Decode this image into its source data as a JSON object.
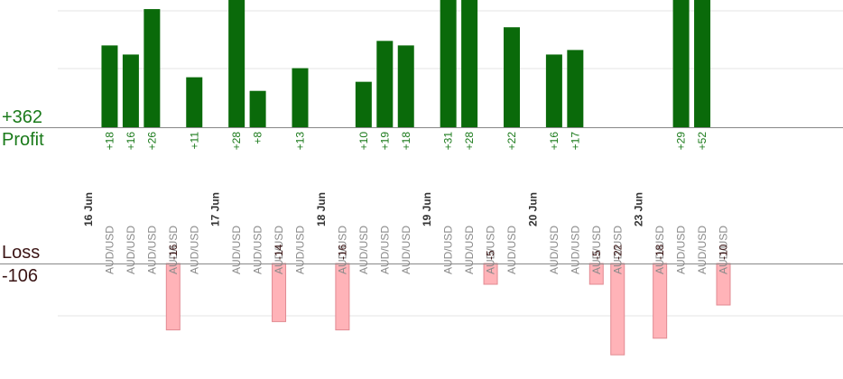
{
  "labels": {
    "profit_total": "+362",
    "profit_title": "Profit",
    "loss_title": "Loss",
    "loss_total": "-106"
  },
  "colors": {
    "profit_bar": "#0a6a0a",
    "profit_text": "#1a7a1a",
    "loss_bar": "#ffb3b8",
    "loss_bar_edge": "#e28a92",
    "loss_text": "#3a1414",
    "axis": "#888888",
    "grid": "#e6e6e6",
    "date_text": "#333333",
    "pair_text": "#8a8a8a"
  },
  "chart_data": {
    "type": "bar",
    "grid": true,
    "profit": {
      "total": "+362",
      "title": "Profit",
      "ylim": [
        0,
        28
      ]
    },
    "loss": {
      "total": "-106",
      "title": "Loss",
      "ylim": [
        0,
        25
      ]
    },
    "slots": [
      {
        "kind": "date",
        "label": "16 Jun"
      },
      {
        "kind": "trade",
        "pair": "AUD/USD",
        "value": 18,
        "label": "+18"
      },
      {
        "kind": "trade",
        "pair": "AUD/USD",
        "value": 16,
        "label": "+16"
      },
      {
        "kind": "trade",
        "pair": "AUD/USD",
        "value": 26,
        "label": "+26"
      },
      {
        "kind": "trade",
        "pair": "AUD/USD",
        "value": -16,
        "label": "-16"
      },
      {
        "kind": "trade",
        "pair": "AUD/USD",
        "value": 11,
        "label": "+11"
      },
      {
        "kind": "date",
        "label": "17 Jun"
      },
      {
        "kind": "trade",
        "pair": "AUD/USD",
        "value": 28,
        "label": "+28"
      },
      {
        "kind": "trade",
        "pair": "AUD/USD",
        "value": 8,
        "label": "+8"
      },
      {
        "kind": "trade",
        "pair": "AUD/USD",
        "value": -14,
        "label": "-14"
      },
      {
        "kind": "trade",
        "pair": "AUD/USD",
        "value": 13,
        "label": "+13"
      },
      {
        "kind": "date",
        "label": "18 Jun"
      },
      {
        "kind": "trade",
        "pair": "AUD/USD",
        "value": -16,
        "label": "-16"
      },
      {
        "kind": "trade",
        "pair": "AUD/USD",
        "value": 10,
        "label": "+10"
      },
      {
        "kind": "trade",
        "pair": "AUD/USD",
        "value": 19,
        "label": "+19"
      },
      {
        "kind": "trade",
        "pair": "AUD/USD",
        "value": 18,
        "label": "+18"
      },
      {
        "kind": "date",
        "label": "19 Jun"
      },
      {
        "kind": "trade",
        "pair": "AUD/USD",
        "value": 31,
        "label": "+31"
      },
      {
        "kind": "trade",
        "pair": "AUD/USD",
        "value": 28,
        "label": "+28"
      },
      {
        "kind": "trade",
        "pair": "AUD/USD",
        "value": -5,
        "label": "-5"
      },
      {
        "kind": "trade",
        "pair": "AUD/USD",
        "value": 22,
        "label": "+22"
      },
      {
        "kind": "date",
        "label": "20 Jun"
      },
      {
        "kind": "trade",
        "pair": "AUD/USD",
        "value": 16,
        "label": "+16"
      },
      {
        "kind": "trade",
        "pair": "AUD/USD",
        "value": 17,
        "label": "+17"
      },
      {
        "kind": "trade",
        "pair": "AUD/USD",
        "value": -5,
        "label": "-5"
      },
      {
        "kind": "trade",
        "pair": "AUD/USD",
        "value": -22,
        "label": "-22"
      },
      {
        "kind": "date",
        "label": "23 Jun"
      },
      {
        "kind": "trade",
        "pair": "AUD/USD",
        "value": -18,
        "label": "-18"
      },
      {
        "kind": "trade",
        "pair": "AUD/USD",
        "value": 29,
        "label": "+29"
      },
      {
        "kind": "trade",
        "pair": "AUD/USD",
        "value": 52,
        "label": "+52"
      },
      {
        "kind": "trade",
        "pair": "AUD/USD",
        "value": -10,
        "label": "-10"
      }
    ]
  }
}
